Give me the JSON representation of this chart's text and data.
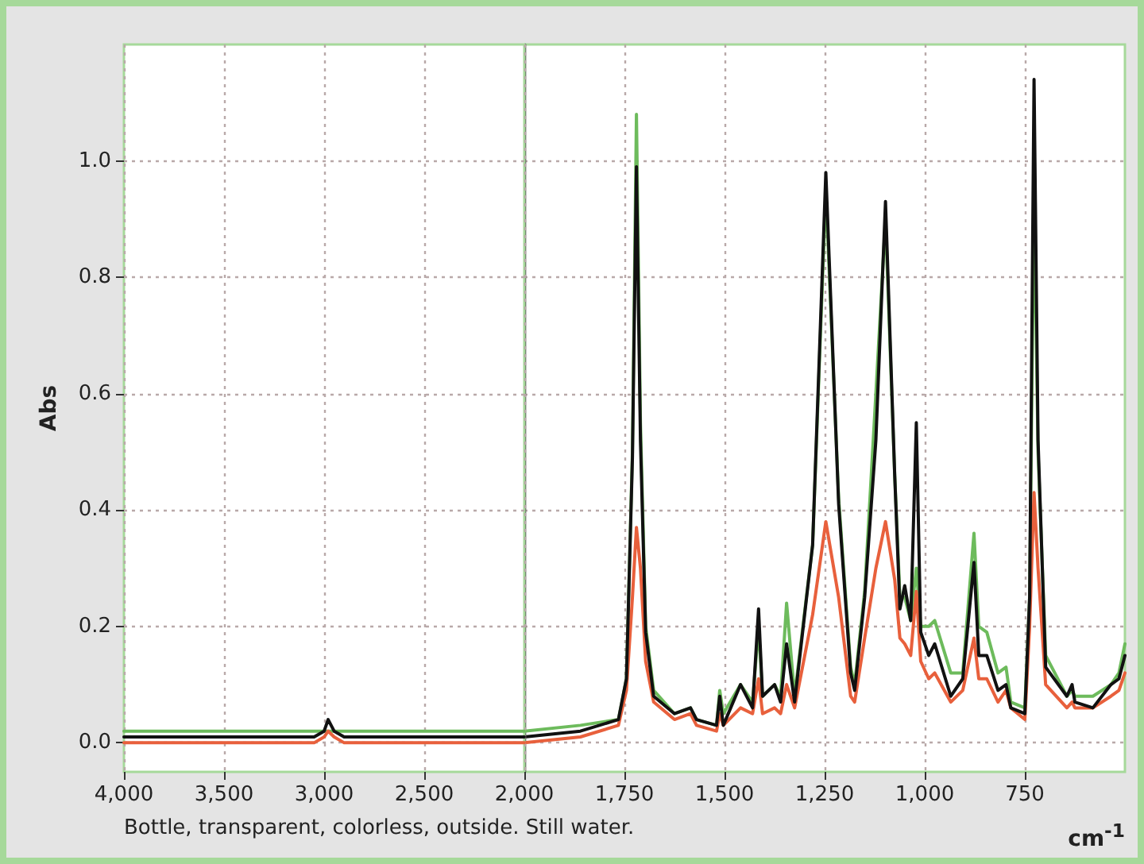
{
  "chart_data": [
    {
      "type": "line",
      "ylabel": "Abs",
      "annotations": [
        "Bottle, transparent, colorless, outside. Still water."
      ],
      "grid": true,
      "line_style": "solid",
      "x": [
        4000,
        3900,
        3800,
        3700,
        3600,
        3500,
        3450,
        3400,
        3300,
        3200,
        3100,
        3050,
        3000,
        2980,
        2950,
        2900,
        2850,
        2800,
        2700,
        2600,
        2500,
        2400,
        2300,
        2200,
        2100,
        2050,
        2000
      ],
      "xlim": [
        4000,
        2000
      ],
      "xticks": [
        {
          "value": 4000,
          "label": "4,000"
        },
        {
          "value": 3500,
          "label": "3,500"
        },
        {
          "value": 3000,
          "label": "3,000"
        },
        {
          "value": 2500,
          "label": "2,500"
        },
        {
          "value": 2000,
          "label": "2,000"
        }
      ],
      "ylim": [
        -0.05,
        1.2
      ],
      "yticks": [
        {
          "value": 0,
          "label": "0.0"
        },
        {
          "value": 0.2,
          "label": "0.2"
        },
        {
          "value": 0.4,
          "label": "0.4"
        },
        {
          "value": 0.6,
          "label": "0.6"
        },
        {
          "value": 0.8,
          "label": "0.8"
        },
        {
          "value": 1,
          "label": "1.0"
        }
      ],
      "series": [
        {
          "color": "#6dbb5c",
          "values": [
            0.02,
            0.02,
            0.02,
            0.02,
            0.02,
            0.02,
            0.02,
            0.02,
            0.02,
            0.02,
            0.02,
            0.02,
            0.02,
            0.02,
            0.02,
            0.02,
            0.02,
            0.02,
            0.02,
            0.02,
            0.02,
            0.02,
            0.02,
            0.02,
            0.02,
            0.02,
            0.02
          ]
        },
        {
          "color": "#e8603c",
          "values": [
            0,
            0,
            0,
            0,
            0,
            0,
            0,
            0,
            0,
            0,
            0,
            0,
            0.01,
            0.02,
            0.01,
            0,
            0,
            0,
            0,
            0,
            0,
            0,
            0,
            0,
            0,
            0,
            0
          ]
        },
        {
          "color": "#111111",
          "values": [
            0.01,
            0.01,
            0.01,
            0.01,
            0.01,
            0.01,
            0.01,
            0.01,
            0.01,
            0.01,
            0.01,
            0.01,
            0.02,
            0.04,
            0.02,
            0.01,
            0.01,
            0.01,
            0.01,
            0.01,
            0.01,
            0.01,
            0.01,
            0.01,
            0.01,
            0.01,
            0.01
          ]
        }
      ]
    },
    {
      "type": "line",
      "xlabel": "cm$^{-1}$",
      "tick_labels": "x",
      "grid": true,
      "line_style": "solid",
      "x": [
        2000,
        1860,
        1765,
        1745,
        1730,
        1720,
        1710,
        1697,
        1677,
        1625,
        1585,
        1570,
        1520,
        1512,
        1503,
        1460,
        1430,
        1415,
        1405,
        1375,
        1360,
        1345,
        1325,
        1280,
        1247,
        1215,
        1185,
        1175,
        1150,
        1122,
        1098,
        1075,
        1062,
        1050,
        1035,
        1021,
        1010,
        990,
        975,
        935,
        905,
        877,
        865,
        845,
        817,
        797,
        785,
        750,
        738,
        727,
        717,
        698,
        645,
        632,
        625,
        580,
        535,
        515,
        500
      ],
      "xlim": [
        2000,
        500
      ],
      "xticks": [
        {
          "value": 1750,
          "label": "1,750"
        },
        {
          "value": 1500,
          "label": "1,500"
        },
        {
          "value": 1250,
          "label": "1,250"
        },
        {
          "value": 1000,
          "label": "1,000"
        },
        750
      ],
      "ylim": [
        -0.05,
        1.2
      ],
      "yticks": [
        {
          "value": 0,
          "label": null
        },
        {
          "value": 0.2,
          "label": null
        },
        {
          "value": 0.4,
          "label": null
        },
        {
          "value": 0.6,
          "label": null
        },
        {
          "value": 0.8,
          "label": null
        },
        {
          "value": 1,
          "label": null
        }
      ],
      "series": [
        {
          "color": "#6dbb5c",
          "values": [
            0.02,
            0.03,
            0.04,
            0.11,
            0.5,
            1.08,
            0.55,
            0.2,
            0.09,
            0.05,
            0.06,
            0.04,
            0.03,
            0.09,
            0.05,
            0.1,
            0.07,
            0.2,
            0.08,
            0.1,
            0.08,
            0.24,
            0.08,
            0.34,
            0.95,
            0.42,
            0.13,
            0.1,
            0.26,
            0.6,
            0.9,
            0.46,
            0.25,
            0.25,
            0.21,
            0.3,
            0.2,
            0.2,
            0.21,
            0.12,
            0.12,
            0.36,
            0.2,
            0.19,
            0.12,
            0.13,
            0.07,
            0.06,
            0.25,
            0.95,
            0.5,
            0.15,
            0.08,
            0.09,
            0.08,
            0.08,
            0.1,
            0.12,
            0.17
          ]
        },
        {
          "color": "#e8603c",
          "values": [
            0,
            0.01,
            0.03,
            0.09,
            0.25,
            0.37,
            0.3,
            0.14,
            0.07,
            0.04,
            0.05,
            0.03,
            0.02,
            0.05,
            0.03,
            0.06,
            0.05,
            0.11,
            0.05,
            0.06,
            0.05,
            0.1,
            0.06,
            0.22,
            0.38,
            0.25,
            0.08,
            0.07,
            0.18,
            0.3,
            0.38,
            0.28,
            0.18,
            0.17,
            0.15,
            0.26,
            0.14,
            0.11,
            0.12,
            0.07,
            0.09,
            0.18,
            0.11,
            0.11,
            0.07,
            0.09,
            0.06,
            0.04,
            0.2,
            0.43,
            0.3,
            0.1,
            0.06,
            0.07,
            0.06,
            0.06,
            0.08,
            0.09,
            0.12
          ]
        },
        {
          "color": "#111111",
          "values": [
            0.01,
            0.02,
            0.04,
            0.11,
            0.49,
            0.99,
            0.52,
            0.19,
            0.08,
            0.05,
            0.06,
            0.04,
            0.03,
            0.08,
            0.03,
            0.1,
            0.06,
            0.23,
            0.08,
            0.1,
            0.07,
            0.17,
            0.07,
            0.34,
            0.98,
            0.41,
            0.12,
            0.09,
            0.25,
            0.52,
            0.93,
            0.46,
            0.23,
            0.27,
            0.21,
            0.55,
            0.19,
            0.15,
            0.17,
            0.08,
            0.11,
            0.31,
            0.15,
            0.15,
            0.09,
            0.1,
            0.06,
            0.05,
            0.25,
            1.14,
            0.52,
            0.13,
            0.08,
            0.1,
            0.07,
            0.06,
            0.1,
            0.11,
            0.15
          ]
        }
      ]
    }
  ]
}
